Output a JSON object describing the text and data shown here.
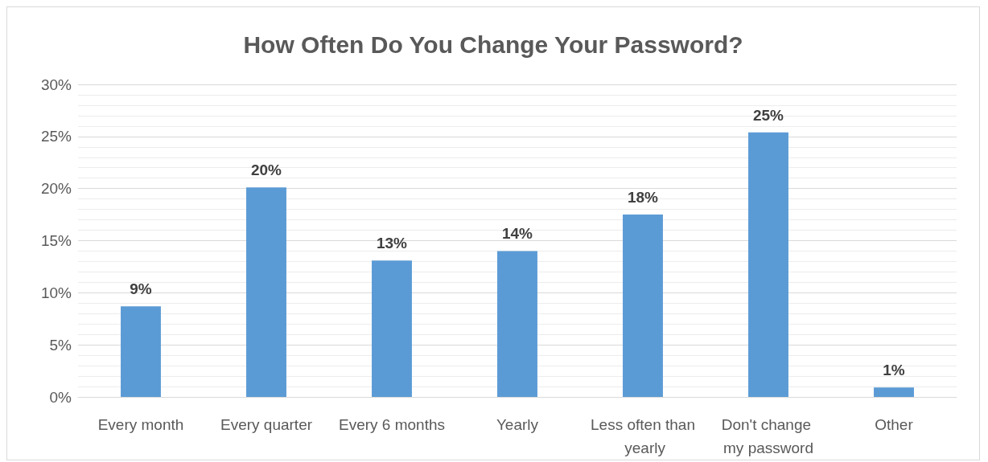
{
  "chart_data": {
    "type": "bar",
    "title": "How Often Do You Change Your Password?",
    "categories": [
      "Every month",
      "Every quarter",
      "Every 6 months",
      "Yearly",
      "Less often than yearly",
      "Don't change my password",
      "Other"
    ],
    "values": [
      8.7,
      20.1,
      13.1,
      14.0,
      17.5,
      25.4,
      0.9
    ],
    "value_labels": [
      "9%",
      "20%",
      "13%",
      "14%",
      "18%",
      "25%",
      "1%"
    ],
    "color": "#5b9bd5",
    "ylim": [
      0,
      30
    ],
    "yticks": [
      {
        "value": 0,
        "label": "0%"
      },
      {
        "value": 5,
        "label": "5%"
      },
      {
        "value": 10,
        "label": "10%"
      },
      {
        "value": 15,
        "label": "15%"
      },
      {
        "value": 20,
        "label": "20%"
      },
      {
        "value": 25,
        "label": "25%"
      },
      {
        "value": 30,
        "label": "30%"
      }
    ],
    "grid": "y"
  }
}
